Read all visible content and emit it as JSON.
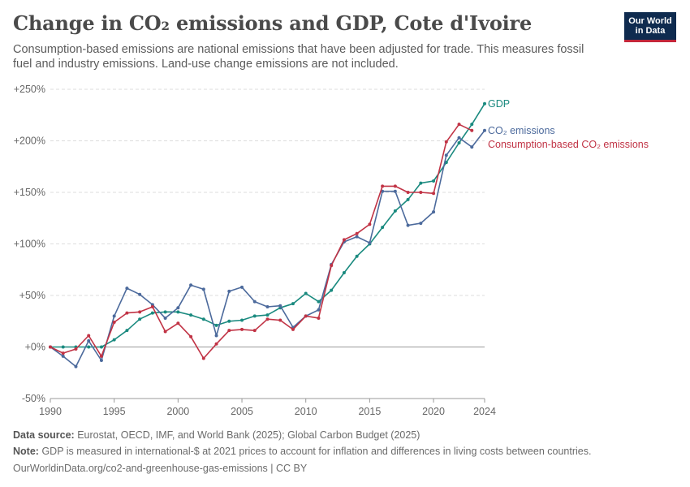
{
  "header": {
    "title": "Change in CO₂ emissions and GDP, Cote d'Ivoire",
    "subtitle": "Consumption-based emissions are national emissions that have been adjusted for trade. This measures fossil fuel and industry emissions. Land-use change emissions are not included.",
    "logo_line1": "Our World",
    "logo_line2": "in Data"
  },
  "footer": {
    "source_label": "Data source:",
    "source_text": "Eurostat, OECD, IMF, and World Bank (2025); Global Carbon Budget (2025)",
    "note_label": "Note:",
    "note_text": "GDP is measured in international-$ at 2021 prices to account for inflation and differences in living costs between countries.",
    "credit": "OurWorldinData.org/co2-and-greenhouse-gas-emissions | CC BY"
  },
  "chart_data": {
    "type": "line",
    "title": "Change in CO₂ emissions and GDP, Cote d'Ivoire",
    "xlabel": "",
    "ylabel": "",
    "xlim": [
      1990,
      2024
    ],
    "ylim": [
      -50,
      250
    ],
    "grid": "horizontal",
    "legend": "right end labels",
    "x_ticks": [
      {
        "value": 1990,
        "label": "1990"
      },
      {
        "value": 1995,
        "label": "1995"
      },
      {
        "value": 2000,
        "label": "2000"
      },
      {
        "value": 2005,
        "label": "2005"
      },
      {
        "value": 2010,
        "label": "2010"
      },
      {
        "value": 2015,
        "label": "2015"
      },
      {
        "value": 2020,
        "label": "2020"
      },
      {
        "value": 2024,
        "label": "2024"
      }
    ],
    "y_ticks": [
      {
        "value": 250,
        "label": "+250%"
      },
      {
        "value": 200,
        "label": "+200%"
      },
      {
        "value": 150,
        "label": "+150%"
      },
      {
        "value": 100,
        "label": "+100%"
      },
      {
        "value": 50,
        "label": "+50%"
      },
      {
        "value": 0,
        "label": "+0%"
      },
      {
        "value": -50,
        "label": "-50%"
      }
    ],
    "x": [
      1990,
      1991,
      1992,
      1993,
      1994,
      1995,
      1996,
      1997,
      1998,
      1999,
      2000,
      2001,
      2002,
      2003,
      2004,
      2005,
      2006,
      2007,
      2008,
      2009,
      2010,
      2011,
      2012,
      2013,
      2014,
      2015,
      2016,
      2017,
      2018,
      2019,
      2020,
      2021,
      2022,
      2023,
      2024
    ],
    "series": [
      {
        "name": "GDP",
        "color": "#1a8a7f",
        "values": [
          0,
          0,
          0,
          0,
          0,
          7,
          16,
          27,
          33,
          34,
          34,
          31,
          27,
          21,
          25,
          26,
          30,
          31,
          38,
          42,
          52,
          44,
          55,
          72,
          88,
          100,
          116,
          132,
          143,
          159,
          161,
          179,
          198,
          216,
          236
        ]
      },
      {
        "name": "CO₂ emissions",
        "color": "#4c6a9c",
        "values": [
          0,
          -9,
          -19,
          6,
          -13,
          30,
          57,
          51,
          41,
          28,
          38,
          60,
          56,
          11,
          54,
          58,
          44,
          39,
          40,
          19,
          30,
          36,
          80,
          102,
          107,
          101,
          151,
          151,
          118,
          120,
          131,
          186,
          203,
          194,
          210
        ]
      },
      {
        "name": "Consumption-based CO₂ emissions",
        "color": "#c13345",
        "values": [
          0,
          -6,
          -2,
          11,
          -9,
          24,
          33,
          34,
          39,
          15,
          23,
          10,
          -11,
          3,
          16,
          17,
          16,
          27,
          26,
          17,
          30,
          28,
          79,
          104,
          110,
          119,
          156,
          156,
          150,
          150,
          149,
          199,
          216,
          210,
          null
        ]
      }
    ]
  }
}
